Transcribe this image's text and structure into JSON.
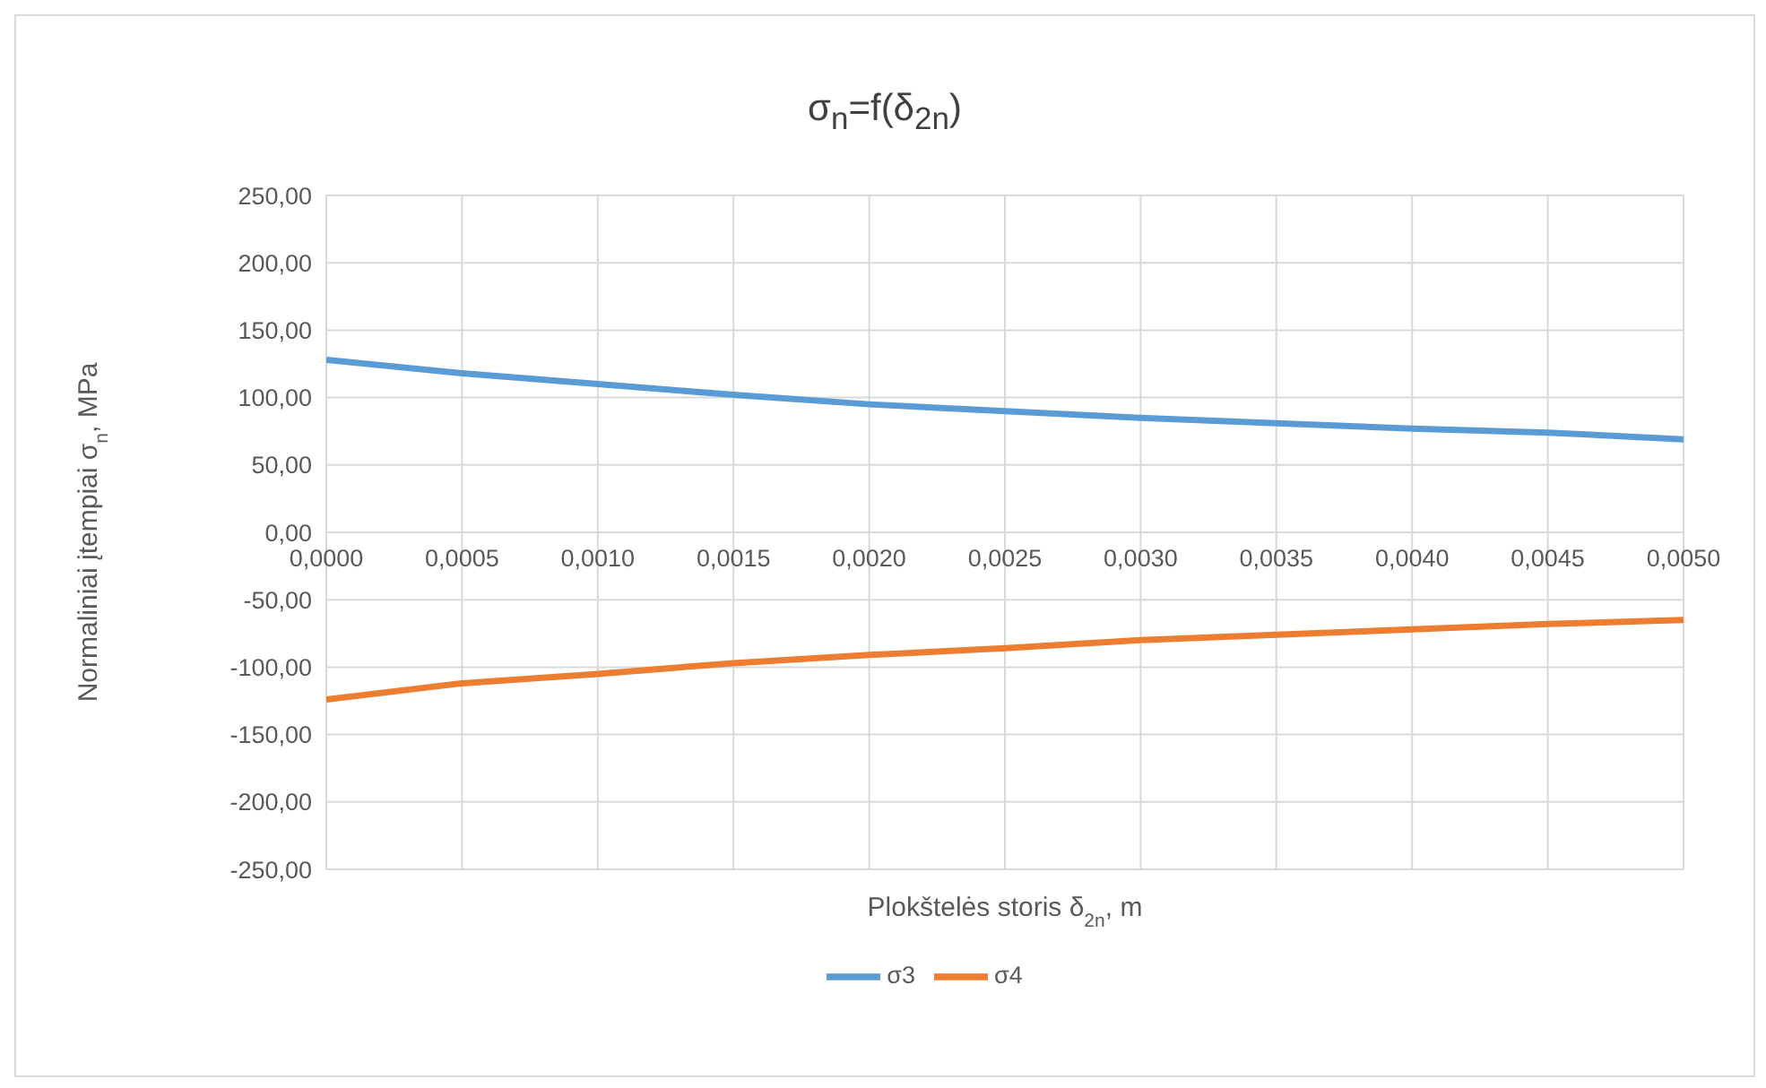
{
  "chart_data": {
    "type": "line",
    "title": "σ$_{n}$=f(δ$_{2n}$)",
    "xlabel": "Plokštelės storis δ$_{2n}$, m",
    "ylabel": "Normaliniai įtempiai σ$_{n}$, MPa",
    "x": [
      0,
      0.0005,
      0.001,
      0.0015,
      0.002,
      0.0025,
      0.003,
      0.0035,
      0.004,
      0.0045,
      0.005
    ],
    "series": [
      {
        "name": "σ3",
        "color": "#5b9bd5",
        "values": [
          128,
          118,
          110,
          102,
          95,
          90,
          85,
          81,
          77,
          74,
          69
        ]
      },
      {
        "name": "σ4",
        "color": "#ed7d31",
        "values": [
          -124,
          -112,
          -105,
          -97,
          -91,
          -86,
          -80,
          -76,
          -72,
          -68,
          -65
        ]
      }
    ],
    "xlim": [
      0,
      0.005
    ],
    "xticks": [
      {
        "value": 0,
        "label": "0,0000"
      },
      {
        "value": 0.0005,
        "label": "0,0005"
      },
      {
        "value": 0.001,
        "label": "0,0010"
      },
      {
        "value": 0.0015,
        "label": "0,0015"
      },
      {
        "value": 0.002,
        "label": "0,0020"
      },
      {
        "value": 0.0025,
        "label": "0,0025"
      },
      {
        "value": 0.003,
        "label": "0,0030"
      },
      {
        "value": 0.0035,
        "label": "0,0035"
      },
      {
        "value": 0.004,
        "label": "0,0040"
      },
      {
        "value": 0.0045,
        "label": "0,0045"
      },
      {
        "value": 0.005,
        "label": "0,0050"
      }
    ],
    "ylim": [
      -250,
      250
    ],
    "yticks": [
      {
        "value": -250,
        "label": "-250,00"
      },
      {
        "value": -200,
        "label": "-200,00"
      },
      {
        "value": -150,
        "label": "-150,00"
      },
      {
        "value": -100,
        "label": "-100,00"
      },
      {
        "value": -50,
        "label": "-50,00"
      },
      {
        "value": 0,
        "label": "0,00"
      },
      {
        "value": 50,
        "label": "50,00"
      },
      {
        "value": 100,
        "label": "100,00"
      },
      {
        "value": 150,
        "label": "150,00"
      },
      {
        "value": 200,
        "label": "200,00"
      },
      {
        "value": 250,
        "label": "250,00"
      }
    ],
    "grid": true,
    "legend": "bottom",
    "marker": "none",
    "line_style": "solid"
  }
}
